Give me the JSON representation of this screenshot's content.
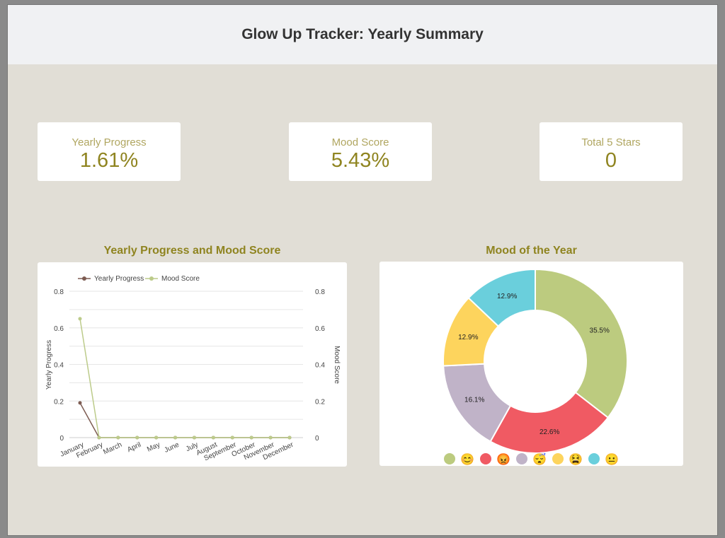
{
  "header": {
    "title": "Glow Up Tracker: Yearly Summary"
  },
  "cards": [
    {
      "label": "Yearly Progress",
      "value": "1.61%"
    },
    {
      "label": "Mood Score",
      "value": "5.43%"
    },
    {
      "label": "Total 5 Stars",
      "value": "0"
    }
  ],
  "colors": {
    "progress": "#7d5c52",
    "mood": "#bccb8a"
  },
  "chart_data": [
    {
      "type": "line",
      "title": "Yearly Progress and Mood Score",
      "categories": [
        "January",
        "February",
        "March",
        "April",
        "May",
        "June",
        "July",
        "August",
        "September",
        "October",
        "November",
        "December"
      ],
      "series": [
        {
          "name": "Yearly Progress",
          "axis": "left",
          "values": [
            0.19,
            0,
            0,
            0,
            0,
            0,
            0,
            0,
            0,
            0,
            0,
            0
          ]
        },
        {
          "name": "Mood Score",
          "axis": "right",
          "values": [
            0.65,
            0,
            0,
            0,
            0,
            0,
            0,
            0,
            0,
            0,
            0,
            0
          ]
        }
      ],
      "ylabel": "Yearly Progress",
      "y2label": "Mood Score",
      "ylim": [
        0,
        0.8
      ],
      "yticks": [
        "0",
        "0.2",
        "0.4",
        "0.6",
        "0.8"
      ],
      "legend": "top-left",
      "grid": true
    },
    {
      "type": "pie",
      "title": "Mood of the Year",
      "donut": true,
      "slices": [
        {
          "label": "😊",
          "value": 35.5,
          "text": "35.5%",
          "color": "#bccb7f"
        },
        {
          "label": "😡",
          "value": 22.6,
          "text": "22.6%",
          "color": "#f05a63"
        },
        {
          "label": "😴",
          "value": 16.1,
          "text": "16.1%",
          "color": "#c0b3c8"
        },
        {
          "label": "😫",
          "value": 12.9,
          "text": "12.9%",
          "color": "#fdd45d"
        },
        {
          "label": "😐",
          "value": 12.9,
          "text": "12.9%",
          "color": "#6acfdc"
        }
      ],
      "legend": "bottom"
    }
  ]
}
